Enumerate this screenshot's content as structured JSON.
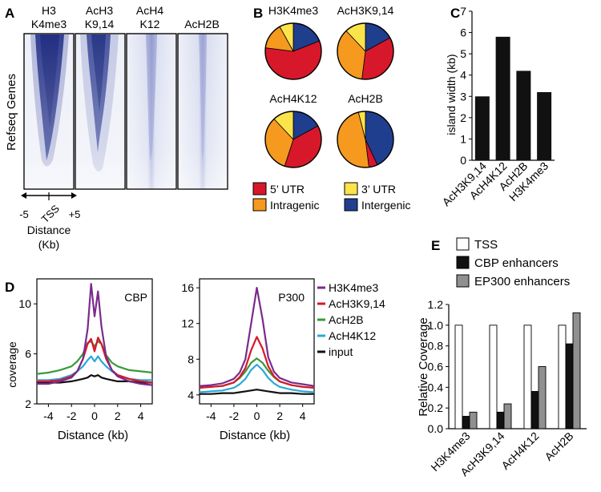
{
  "panel_labels": {
    "A": "A",
    "B": "B",
    "C": "C",
    "D": "D",
    "E": "E"
  },
  "panel_a": {
    "heatmaps": [
      {
        "line1": "H3",
        "line2": "K4me3"
      },
      {
        "line1": "AcH3",
        "line2": "K9,14"
      },
      {
        "line1": "AcH4",
        "line2": "K12"
      },
      {
        "line1": "",
        "line2": "AcH2B"
      }
    ],
    "ylabel": "Refseq Genes",
    "tick_left": "-5",
    "tick_mid": "TSS",
    "tick_right": "+5",
    "xlabel_line1": "Distance",
    "xlabel_line2": "(Kb)",
    "colors": {
      "high": "#0d1a6e",
      "low": "#eef0f8"
    }
  },
  "chart_data": [
    {
      "type": "pie",
      "panel": "B",
      "categories": [
        "5' UTR",
        "3' UTR",
        "Intragenic",
        "Intergenic"
      ],
      "colors": {
        "5' UTR": "#d7182a",
        "3' UTR": "#fbe34a",
        "Intragenic": "#f59a1e",
        "Intergenic": "#1f3e8e"
      },
      "legend": [
        "5’ UTR",
        "3’ UTR",
        "Intragenic",
        "Intergenic"
      ],
      "pies": [
        {
          "title": "H3K4me3",
          "values": {
            "Intergenic": 0.19,
            "5' UTR": 0.58,
            "Intragenic": 0.15,
            "3' UTR": 0.08
          }
        },
        {
          "title": "AcH3K9,14",
          "values": {
            "Intergenic": 0.17,
            "5' UTR": 0.35,
            "Intragenic": 0.36,
            "3' UTR": 0.12
          }
        },
        {
          "title": "AcH4K12",
          "values": {
            "Intergenic": 0.17,
            "5' UTR": 0.38,
            "Intragenic": 0.33,
            "3' UTR": 0.12
          }
        },
        {
          "title": "AcH2B",
          "values": {
            "Intergenic": 0.43,
            "5' UTR": 0.05,
            "Intragenic": 0.48,
            "3' UTR": 0.04
          }
        }
      ]
    },
    {
      "type": "bar",
      "panel": "C",
      "categories": [
        "AcH3K9,14",
        "AcH4K12",
        "AcH2B",
        "H3K4me3"
      ],
      "values": [
        3.0,
        5.8,
        4.2,
        3.2
      ],
      "ylabel": "island width (kb)",
      "ylim": [
        0,
        7
      ],
      "yticks": [
        "0",
        "1",
        "2",
        "3",
        "4",
        "5",
        "6",
        "7"
      ],
      "bar_color": "#111111"
    },
    {
      "type": "line",
      "panel": "D",
      "subplots": [
        {
          "title": "CBP",
          "ylabel": "coverage",
          "xlabel": "Distance (kb)",
          "xlim": [
            -5,
            5
          ],
          "ylim": [
            2,
            12
          ],
          "yticks": [
            "2",
            "6",
            "10"
          ],
          "xticks": [
            "-4",
            "-2",
            "0",
            "2",
            "4"
          ],
          "x": [
            -5,
            -4,
            -3,
            -2,
            -1.5,
            -1,
            -0.6,
            -0.3,
            0,
            0.3,
            0.6,
            1,
            1.5,
            2,
            3,
            4,
            5
          ],
          "series": [
            {
              "name": "H3K4me3",
              "color": "#7b2a8c",
              "values": [
                3.6,
                3.6,
                3.8,
                4.1,
                4.6,
                5.6,
                8.0,
                11.6,
                9.0,
                11.0,
                8.2,
                5.8,
                4.7,
                4.2,
                3.8,
                3.6,
                3.5
              ]
            },
            {
              "name": "AcH3K9,14",
              "color": "#d7182a",
              "values": [
                3.8,
                3.8,
                3.9,
                4.2,
                4.6,
                5.6,
                6.8,
                7.2,
                6.2,
                7.3,
                6.8,
                5.6,
                4.7,
                4.3,
                4.0,
                3.8,
                3.7
              ]
            },
            {
              "name": "AcH2B",
              "color": "#3a9a3a",
              "values": [
                4.4,
                4.5,
                4.7,
                5.0,
                5.4,
                6.0,
                6.9,
                7.0,
                6.6,
                7.0,
                6.8,
                5.9,
                5.3,
                5.0,
                4.7,
                4.6,
                4.5
              ]
            },
            {
              "name": "AcH4K12",
              "color": "#2aa8d8",
              "values": [
                3.9,
                3.9,
                4.0,
                4.3,
                4.6,
                5.0,
                5.5,
                5.8,
                5.4,
                5.8,
                5.4,
                5.0,
                4.6,
                4.3,
                4.0,
                3.9,
                3.9
              ]
            },
            {
              "name": "input",
              "color": "#111111",
              "values": [
                3.7,
                3.7,
                3.7,
                3.8,
                3.9,
                4.0,
                4.1,
                4.3,
                4.2,
                4.3,
                4.1,
                4.0,
                3.9,
                3.8,
                3.8,
                3.7,
                3.7
              ]
            }
          ]
        },
        {
          "title": "P300",
          "ylabel": "",
          "xlabel": "Distance (kb)",
          "xlim": [
            -5,
            5
          ],
          "ylim": [
            3,
            17
          ],
          "yticks": [
            "4",
            "8",
            "12",
            "16"
          ],
          "xticks": [
            "-4",
            "-2",
            "0",
            "2",
            "4"
          ],
          "x": [
            -5,
            -4,
            -3,
            -2,
            -1.5,
            -1,
            -0.5,
            0,
            0.5,
            1,
            1.5,
            2,
            3,
            4,
            5
          ],
          "series": [
            {
              "name": "H3K4me3",
              "color": "#7b2a8c",
              "values": [
                5.0,
                5.1,
                5.3,
                5.8,
                6.5,
                8.0,
                12.0,
                16.0,
                12.5,
                8.2,
                6.6,
                5.9,
                5.4,
                5.2,
                5.0
              ]
            },
            {
              "name": "AcH3K9,14",
              "color": "#d7182a",
              "values": [
                4.8,
                4.9,
                5.0,
                5.4,
                6.0,
                7.0,
                9.0,
                10.5,
                9.2,
                7.2,
                6.1,
                5.5,
                5.1,
                4.9,
                4.8
              ]
            },
            {
              "name": "AcH2B",
              "color": "#3a9a3a",
              "values": [
                4.8,
                4.9,
                5.0,
                5.4,
                5.9,
                6.6,
                7.6,
                8.1,
                7.6,
                6.7,
                6.0,
                5.5,
                5.1,
                4.9,
                4.8
              ]
            },
            {
              "name": "AcH4K12",
              "color": "#2aa8d8",
              "values": [
                4.3,
                4.4,
                4.5,
                4.8,
                5.2,
                5.8,
                6.8,
                7.4,
                6.8,
                5.9,
                5.3,
                4.9,
                4.6,
                4.4,
                4.3
              ]
            },
            {
              "name": "input",
              "color": "#111111",
              "values": [
                4.1,
                4.1,
                4.2,
                4.2,
                4.3,
                4.4,
                4.5,
                4.6,
                4.5,
                4.4,
                4.3,
                4.2,
                4.2,
                4.1,
                4.1
              ]
            }
          ]
        }
      ],
      "legend": [
        "H3K4me3",
        "AcH3K9,14",
        "AcH2B",
        "AcH4K12",
        "input"
      ]
    },
    {
      "type": "bar",
      "panel": "E",
      "categories": [
        "H3K4me3",
        "AcH3K9,14",
        "AcH4K12",
        "AcH2B"
      ],
      "series": [
        {
          "name": "TSS",
          "color": "#ffffff",
          "values": [
            1.0,
            1.0,
            1.0,
            1.0
          ]
        },
        {
          "name": "CBP enhancers",
          "color": "#111111",
          "values": [
            0.12,
            0.16,
            0.36,
            0.82
          ]
        },
        {
          "name": "EP300 enhancers",
          "color": "#909090",
          "values": [
            0.16,
            0.24,
            0.6,
            1.12
          ]
        }
      ],
      "ylabel": "Relative Coverage",
      "ylim": [
        0,
        1.2
      ],
      "yticks": [
        "0.0",
        "0.2",
        "0.4",
        "0.6",
        "0.8",
        "1.0",
        "1.2"
      ]
    }
  ]
}
